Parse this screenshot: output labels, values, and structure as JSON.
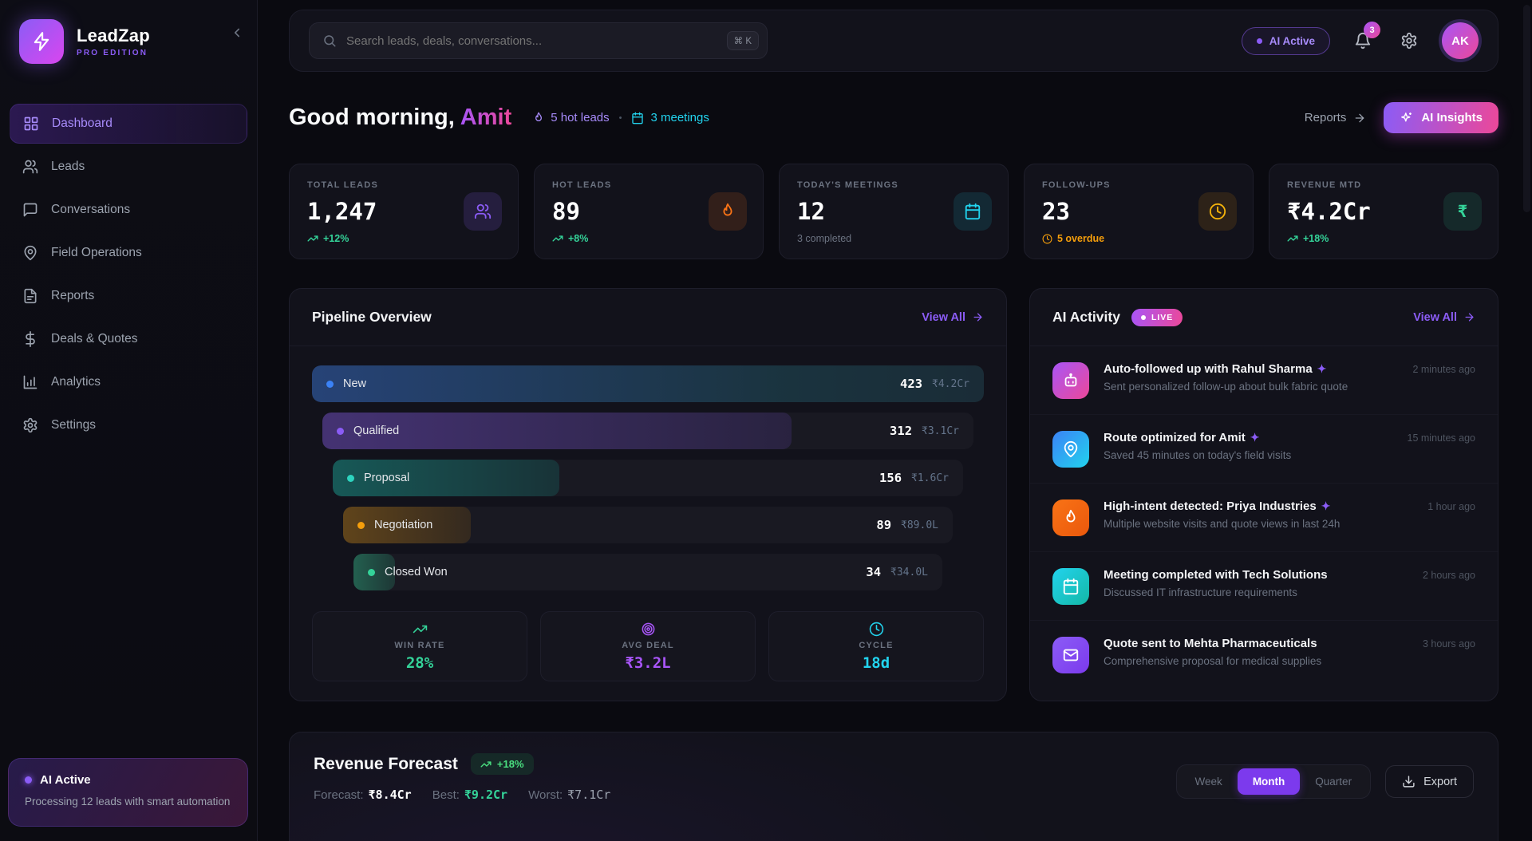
{
  "app": {
    "name": "LeadZap",
    "edition": "PRO EDITION"
  },
  "sidebar": {
    "items": [
      {
        "label": "Dashboard",
        "icon": "grid-icon",
        "active": true
      },
      {
        "label": "Leads",
        "icon": "users-icon",
        "active": false
      },
      {
        "label": "Conversations",
        "icon": "chat-icon",
        "active": false
      },
      {
        "label": "Field Operations",
        "icon": "map-pin-icon",
        "active": false
      },
      {
        "label": "Reports",
        "icon": "document-icon",
        "active": false
      },
      {
        "label": "Deals & Quotes",
        "icon": "dollar-icon",
        "active": false
      },
      {
        "label": "Analytics",
        "icon": "bar-chart-icon",
        "active": false
      },
      {
        "label": "Settings",
        "icon": "gear-icon",
        "active": false
      }
    ],
    "ai_widget": {
      "title": "AI Active",
      "description": "Processing 12 leads with smart automation"
    }
  },
  "topbar": {
    "search_placeholder": "Search leads, deals, conversations...",
    "search_shortcut": "⌘ K",
    "ai_status": "AI Active",
    "notification_count": "3",
    "avatar_initials": "AK"
  },
  "greeting": {
    "prefix": "Good morning, ",
    "name": "Amit",
    "hot_leads": "5 hot leads",
    "separator": "•",
    "meetings": "3 meetings",
    "reports_link": "Reports",
    "ai_insights_button": "AI Insights"
  },
  "stats": [
    {
      "label": "TOTAL LEADS",
      "value": "1,247",
      "sub": "+12%",
      "icon": "users-icon",
      "accent": "#8b5cf6"
    },
    {
      "label": "HOT LEADS",
      "value": "89",
      "sub": "+8%",
      "icon": "flame-icon",
      "accent": "#f97316"
    },
    {
      "label": "TODAY'S MEETINGS",
      "value": "12",
      "sub": "3 completed",
      "icon": "calendar-icon",
      "accent": "#22d3ee"
    },
    {
      "label": "FOLLOW-UPS",
      "value": "23",
      "sub": "5 overdue",
      "icon": "clock-icon",
      "accent": "#f59e0b"
    },
    {
      "label": "REVENUE MTD",
      "value": "₹4.2Cr",
      "sub": "+18%",
      "icon": "rupee-icon",
      "accent": "#34d399"
    }
  ],
  "pipeline": {
    "title": "Pipeline Overview",
    "view_all": "View All",
    "stages": [
      {
        "name": "New",
        "count": "423",
        "amount": "₹4.2Cr",
        "color": "#3b82f6",
        "fill_pct": 100
      },
      {
        "name": "Qualified",
        "count": "312",
        "amount": "₹3.1Cr",
        "color": "#8b5cf6",
        "fill_pct": 72
      },
      {
        "name": "Proposal",
        "count": "156",
        "amount": "₹1.6Cr",
        "color": "#2dd4bf",
        "fill_pct": 36
      },
      {
        "name": "Negotiation",
        "count": "89",
        "amount": "₹89.0L",
        "color": "#f59e0b",
        "fill_pct": 21
      },
      {
        "name": "Closed Won",
        "count": "34",
        "amount": "₹34.0L",
        "color": "#34d399",
        "fill_pct": 7
      }
    ],
    "metrics": [
      {
        "label": "WIN RATE",
        "value": "28%",
        "icon": "trending-up-icon",
        "color": "#34d399"
      },
      {
        "label": "AVG DEAL",
        "value": "₹3.2L",
        "icon": "target-icon",
        "color": "#a855f7"
      },
      {
        "label": "CYCLE",
        "value": "18d",
        "icon": "clock-icon",
        "color": "#22d3ee"
      }
    ]
  },
  "ai_activity": {
    "title": "AI Activity",
    "live_badge": "LIVE",
    "view_all": "View All",
    "items": [
      {
        "icon": "bot-icon",
        "title": "Auto-followed up with Rahul Sharma",
        "sparkle": true,
        "description": "Sent personalized follow-up about bulk fabric quote",
        "time": "2 minutes ago"
      },
      {
        "icon": "map-pin-icon",
        "title": "Route optimized for Amit",
        "sparkle": true,
        "description": "Saved 45 minutes on today's field visits",
        "time": "15 minutes ago"
      },
      {
        "icon": "flame-icon",
        "title": "High-intent detected: Priya Industries",
        "sparkle": true,
        "description": "Multiple website visits and quote views in last 24h",
        "time": "1 hour ago"
      },
      {
        "icon": "calendar-icon",
        "title": "Meeting completed with Tech Solutions",
        "sparkle": false,
        "description": "Discussed IT infrastructure requirements",
        "time": "2 hours ago"
      },
      {
        "icon": "mail-icon",
        "title": "Quote sent to Mehta Pharmaceuticals",
        "sparkle": false,
        "description": "Comprehensive proposal for medical supplies",
        "time": "3 hours ago"
      }
    ]
  },
  "forecast": {
    "title": "Revenue Forecast",
    "badge": "+18%",
    "forecast_label": "Forecast:",
    "forecast_value": "₹8.4Cr",
    "best_label": "Best:",
    "best_value": "₹9.2Cr",
    "worst_label": "Worst:",
    "worst_value": "₹7.1Cr",
    "periods": [
      "Week",
      "Month",
      "Quarter"
    ],
    "active_period": "Month",
    "export_label": "Export"
  }
}
